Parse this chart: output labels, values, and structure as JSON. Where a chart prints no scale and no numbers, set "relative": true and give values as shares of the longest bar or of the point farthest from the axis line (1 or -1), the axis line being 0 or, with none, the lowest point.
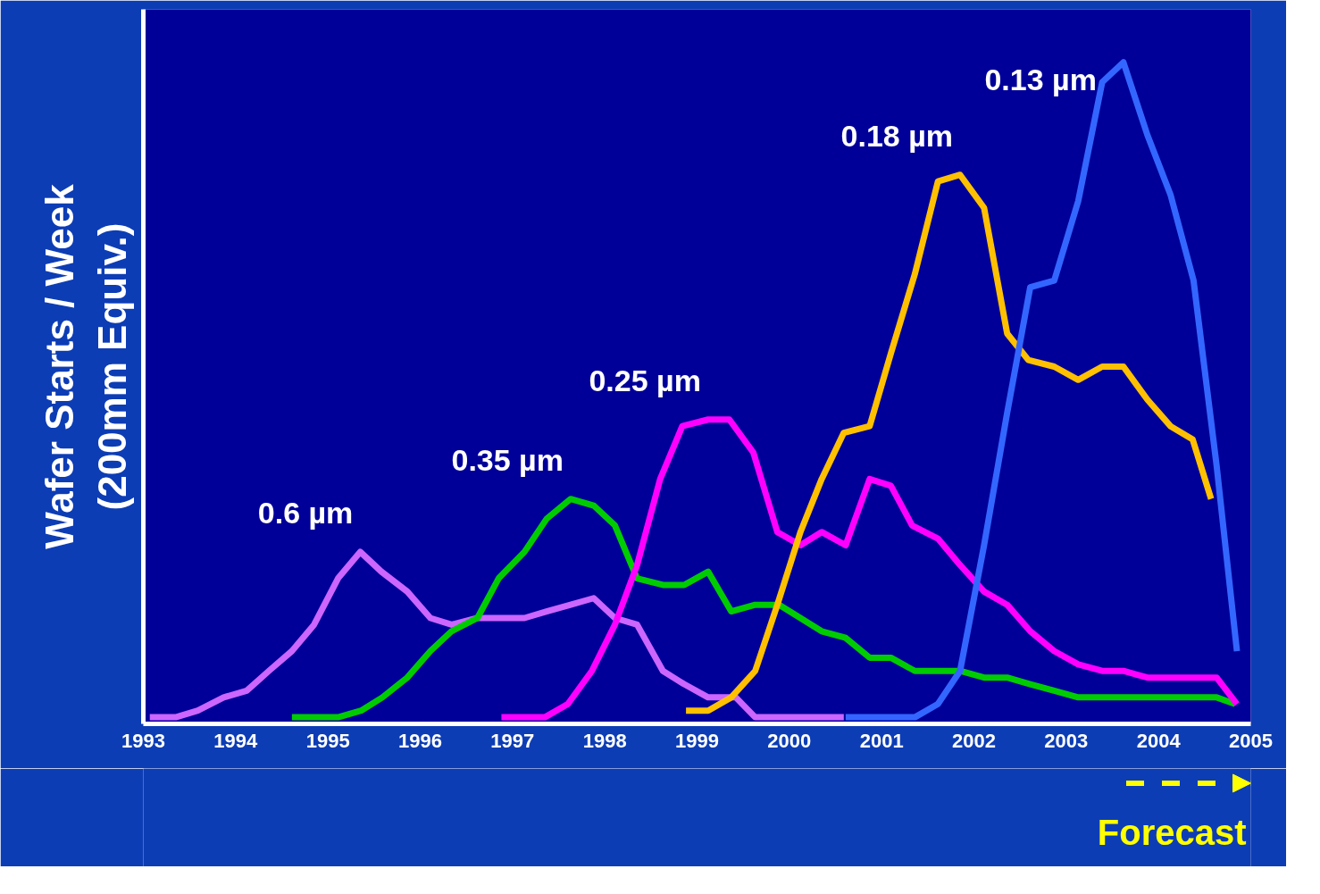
{
  "chart_data": {
    "type": "line",
    "relative": true,
    "ylabel": "Wafer Starts / Week\n(200mm Equiv.)",
    "xlim": [
      1993,
      2005
    ],
    "xticks": [
      1993,
      1994,
      1995,
      1996,
      1997,
      1998,
      1999,
      2000,
      2001,
      2002,
      2003,
      2004,
      2005
    ],
    "line_style": "solid",
    "series": [
      {
        "name": "0.6 µm",
        "color": "#cc66ff",
        "x": [
          1993.07,
          1993.35,
          1993.59,
          1993.87,
          1994.12,
          1994.36,
          1994.61,
          1994.85,
          1995.11,
          1995.35,
          1995.58,
          1995.86,
          1996.11,
          1996.34,
          1996.62,
          1996.85,
          1997.13,
          1997.37,
          1997.63,
          1997.88,
          1998.11,
          1998.35,
          1998.63,
          1998.86,
          1999.12,
          1999.42,
          1999.63,
          1999.89,
          2000.35,
          2000.59
        ],
        "values": [
          0.01,
          0.01,
          0.02,
          0.04,
          0.05,
          0.08,
          0.11,
          0.15,
          0.22,
          0.26,
          0.23,
          0.2,
          0.16,
          0.15,
          0.16,
          0.16,
          0.16,
          0.17,
          0.18,
          0.19,
          0.16,
          0.15,
          0.08,
          0.06,
          0.04,
          0.04,
          0.01,
          0.01,
          0.01,
          0.01
        ]
      },
      {
        "name": "0.35 µm",
        "color": "#00cc00",
        "x": [
          1994.61,
          1994.85,
          1995.11,
          1995.36,
          1995.59,
          1995.86,
          1996.11,
          1996.34,
          1996.62,
          1996.85,
          1997.13,
          1997.37,
          1997.63,
          1997.88,
          1998.11,
          1998.35,
          1998.63,
          1998.86,
          1999.12,
          1999.37,
          1999.63,
          1999.89,
          2000.12,
          2000.35,
          2000.61,
          2000.87,
          2001.1,
          2001.36,
          2001.61,
          2001.85,
          2002.11,
          2002.36,
          2002.61,
          2002.87,
          2003.13,
          2003.62,
          2004.13,
          2004.63,
          2004.83
        ],
        "values": [
          0.01,
          0.01,
          0.01,
          0.02,
          0.04,
          0.07,
          0.11,
          0.14,
          0.16,
          0.22,
          0.26,
          0.31,
          0.34,
          0.33,
          0.3,
          0.22,
          0.21,
          0.21,
          0.23,
          0.17,
          0.18,
          0.18,
          0.16,
          0.14,
          0.13,
          0.1,
          0.1,
          0.08,
          0.08,
          0.08,
          0.07,
          0.07,
          0.06,
          0.05,
          0.04,
          0.04,
          0.04,
          0.04,
          0.03
        ]
      },
      {
        "name": "0.25 µm",
        "color": "#ff00ff",
        "x": [
          1996.88,
          1997.11,
          1997.35,
          1997.6,
          1997.86,
          1998.11,
          1998.35,
          1998.6,
          1998.84,
          1999.12,
          1999.35,
          1999.61,
          1999.87,
          2000.12,
          2000.35,
          2000.61,
          2000.87,
          2001.1,
          2001.33,
          2001.61,
          2001.85,
          2002.11,
          2002.36,
          2002.61,
          2002.87,
          2003.13,
          2003.39,
          2003.62,
          2003.88,
          2004.13,
          2004.38,
          2004.63,
          2004.85
        ],
        "values": [
          0.01,
          0.01,
          0.01,
          0.03,
          0.08,
          0.15,
          0.24,
          0.37,
          0.45,
          0.46,
          0.46,
          0.41,
          0.29,
          0.27,
          0.29,
          0.27,
          0.37,
          0.36,
          0.3,
          0.28,
          0.24,
          0.2,
          0.18,
          0.14,
          0.11,
          0.09,
          0.08,
          0.08,
          0.07,
          0.07,
          0.07,
          0.07,
          0.03
        ]
      },
      {
        "name": "0.18 µm",
        "color": "#ffc000",
        "x": [
          1998.88,
          1999.12,
          1999.37,
          1999.63,
          1999.87,
          2000.12,
          2000.35,
          2000.59,
          2000.87,
          2001.1,
          2001.36,
          2001.61,
          2001.85,
          2002.11,
          2002.36,
          2002.59,
          2002.87,
          2003.13,
          2003.39,
          2003.62,
          2003.88,
          2004.13,
          2004.37,
          2004.57
        ],
        "values": [
          0.02,
          0.02,
          0.04,
          0.08,
          0.18,
          0.29,
          0.37,
          0.44,
          0.45,
          0.56,
          0.68,
          0.82,
          0.83,
          0.78,
          0.59,
          0.55,
          0.54,
          0.52,
          0.54,
          0.54,
          0.49,
          0.45,
          0.43,
          0.34
        ]
      },
      {
        "name": "0.13 µm",
        "color": "#3366ff",
        "x": [
          2000.61,
          2001.1,
          2001.36,
          2001.61,
          2001.85,
          2002.11,
          2002.36,
          2002.61,
          2002.87,
          2003.13,
          2003.39,
          2003.62,
          2003.88,
          2004.13,
          2004.38,
          2004.63,
          2004.85
        ],
        "values": [
          0.01,
          0.01,
          0.01,
          0.03,
          0.08,
          0.27,
          0.47,
          0.66,
          0.67,
          0.79,
          0.97,
          1.0,
          0.89,
          0.8,
          0.67,
          0.39,
          0.11
        ]
      }
    ],
    "annotations": [
      "Forecast"
    ]
  }
}
